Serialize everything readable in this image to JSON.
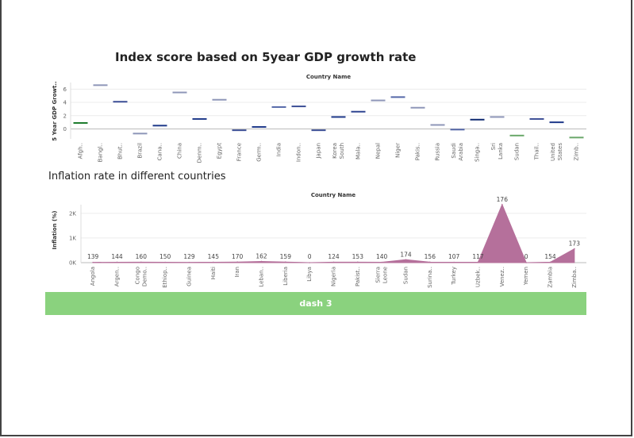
{
  "dashboard": {
    "button_label": "dash 3"
  },
  "chart_data": [
    {
      "type": "gantt",
      "title": "Index score based on 5year GDP growth rate",
      "header": "Country Name",
      "ylabel": "5 Year GDP Growt..",
      "ylim": [
        -1.5,
        7
      ],
      "yticks": [
        0,
        2,
        4,
        6
      ],
      "categories": [
        "Afgh..",
        "Bangl..",
        "Bhut..",
        "Brazil",
        "Cana..",
        "China",
        "Denm..",
        "Egypt",
        "France",
        "Germ..",
        "India",
        "Indon..",
        "Japan",
        "Korea South",
        "Mala..",
        "Nepal",
        "Niger",
        "Pakis..",
        "Russia",
        "Saudi Arabia",
        "Singa..",
        "Sri Lanka",
        "Sudan",
        "Thail..",
        "United States",
        "Zimb.."
      ],
      "values": [
        0.9,
        6.6,
        4.1,
        -0.7,
        0.5,
        5.5,
        1.5,
        4.4,
        -0.2,
        0.3,
        3.3,
        3.4,
        -0.2,
        1.8,
        2.6,
        4.3,
        4.8,
        3.2,
        0.6,
        -0.1,
        1.4,
        1.8,
        -1.0,
        1.5,
        1.0,
        -1.3
      ],
      "colors": [
        "#1a7a2a",
        "#8e96b8",
        "#3d4f96",
        "#8e96b8",
        "#1f3a8a",
        "#8e96b8",
        "#1f3a8a",
        "#8e96b8",
        "#3d4f96",
        "#1f3a8a",
        "#5568a8",
        "#3d4f96",
        "#3d4f96",
        "#1f3a8a",
        "#2f4591",
        "#8e96b8",
        "#5568a8",
        "#8e96b8",
        "#8e96b8",
        "#5568a8",
        "#0f2a70",
        "#8e96b8",
        "#6aa86a",
        "#3d4f96",
        "#1f3a8a",
        "#6aa86a"
      ]
    },
    {
      "type": "area",
      "title": "Inflation rate in different countries",
      "header": "Country Name",
      "ylabel": "Inflation (%)",
      "ylim": [
        0,
        2350
      ],
      "yticks": [
        {
          "value": 0,
          "label": "0K"
        },
        {
          "value": 1000,
          "label": "1K"
        },
        {
          "value": 2000,
          "label": "2K"
        }
      ],
      "categories": [
        "Angola",
        "Argen..",
        "Congo Demo..",
        "Ethiop..",
        "Guinea",
        "Haiti",
        "Iran",
        "Leban..",
        "Liberia",
        "Libya",
        "Nigeria",
        "Pakist..",
        "Sierra Leone",
        "Sudan",
        "Surina..",
        "Turkey",
        "Uzbek..",
        "Venez..",
        "Yemen",
        "Zambia",
        "Zimba.."
      ],
      "values": [
        12,
        18,
        20,
        15,
        12,
        18,
        25,
        50,
        25,
        0,
        20,
        22,
        15,
        120,
        22,
        15,
        18,
        2355,
        0,
        20,
        560
      ],
      "labels": [
        "139",
        "144",
        "160",
        "150",
        "129",
        "145",
        "170",
        "162",
        "159",
        "0",
        "124",
        "153",
        "140",
        "174",
        "156",
        "107",
        "117",
        "176",
        "0",
        "154",
        "173"
      ],
      "color": "#b5709b"
    }
  ]
}
